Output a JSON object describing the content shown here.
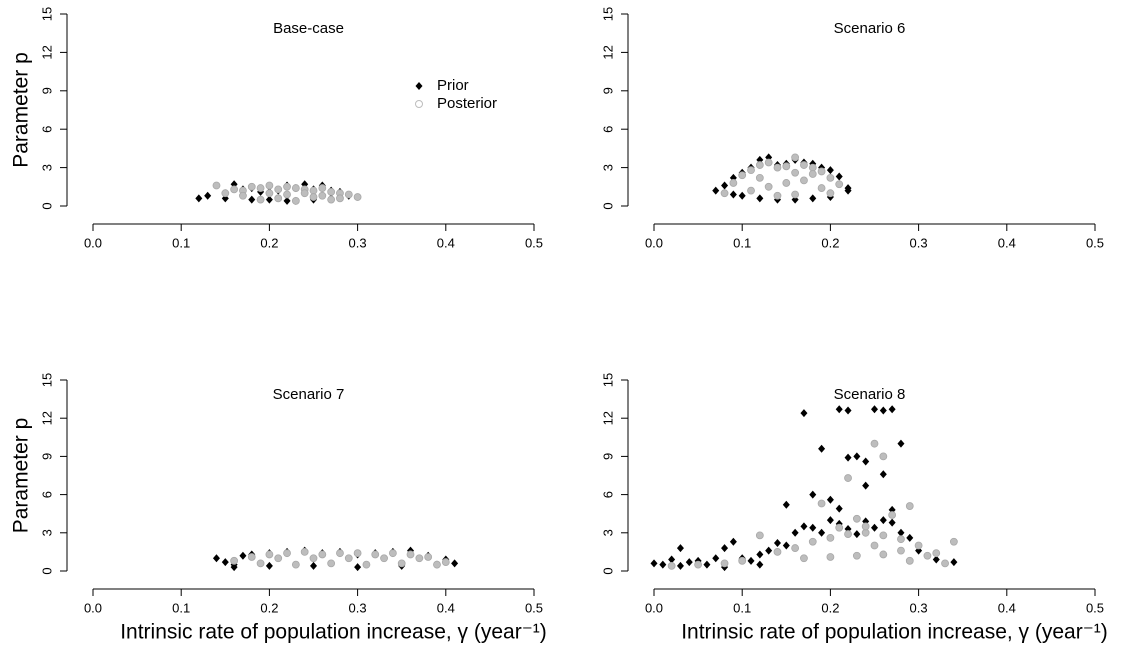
{
  "chart_data": [
    {
      "type": "scatter",
      "title": "Base-case",
      "y_label": "Parameter p",
      "legend": "top-right",
      "xlim": [
        0,
        0.5
      ],
      "ylim": [
        0,
        15
      ],
      "xticks": [
        {
          "value": 0,
          "label": "0.0"
        },
        0.1,
        0.2,
        0.3,
        0.4,
        0.5
      ],
      "yticks": [
        0,
        3,
        6,
        9,
        12,
        15
      ],
      "series": [
        {
          "name": "Prior",
          "color": "#000000",
          "x": [
            0.12,
            0.13,
            0.15,
            0.16,
            0.17,
            0.18,
            0.19,
            0.2,
            0.21,
            0.22,
            0.23,
            0.24,
            0.25,
            0.26,
            0.27,
            0.28,
            0.29,
            0.2,
            0.23,
            0.25,
            0.15,
            0.27,
            0.18,
            0.22
          ],
          "values": [
            0.6,
            0.8,
            1.0,
            1.7,
            1.3,
            1.4,
            1.1,
            1.5,
            1.2,
            1.6,
            1.4,
            1.7,
            1.3,
            1.6,
            1.2,
            1.1,
            0.8,
            0.5,
            0.4,
            0.5,
            0.6,
            0.6,
            0.5,
            0.4
          ]
        },
        {
          "name": "Posterior",
          "color": "#bdbdbd",
          "x": [
            0.14,
            0.15,
            0.16,
            0.17,
            0.18,
            0.19,
            0.2,
            0.21,
            0.22,
            0.23,
            0.24,
            0.25,
            0.26,
            0.27,
            0.28,
            0.29,
            0.3,
            0.19,
            0.21,
            0.23,
            0.25,
            0.27,
            0.17,
            0.2,
            0.22,
            0.24,
            0.26,
            0.28
          ],
          "values": [
            1.6,
            1.0,
            1.3,
            1.2,
            1.5,
            1.4,
            1.6,
            1.3,
            1.5,
            1.4,
            1.3,
            1.2,
            1.4,
            1.1,
            1.0,
            0.9,
            0.7,
            0.5,
            0.6,
            0.4,
            0.7,
            0.5,
            0.8,
            1.0,
            0.9,
            1.0,
            0.8,
            0.6
          ]
        }
      ]
    },
    {
      "type": "scatter",
      "title": "Scenario 6",
      "xlim": [
        0,
        0.5
      ],
      "ylim": [
        0,
        15
      ],
      "xticks": [
        {
          "value": 0,
          "label": "0.0"
        },
        0.1,
        0.2,
        0.3,
        0.4,
        0.5
      ],
      "yticks": [
        0,
        3,
        6,
        9,
        12,
        15
      ],
      "series": [
        {
          "name": "Prior",
          "color": "#000000",
          "x": [
            0.07,
            0.08,
            0.09,
            0.1,
            0.11,
            0.12,
            0.13,
            0.14,
            0.15,
            0.16,
            0.17,
            0.18,
            0.19,
            0.2,
            0.21,
            0.22,
            0.1,
            0.12,
            0.14,
            0.16,
            0.18,
            0.2,
            0.22,
            0.09
          ],
          "values": [
            1.2,
            1.6,
            2.2,
            2.6,
            3.0,
            3.6,
            3.8,
            3.2,
            3.3,
            3.6,
            3.4,
            3.3,
            3.0,
            2.8,
            2.3,
            1.4,
            0.8,
            0.6,
            0.5,
            0.5,
            0.6,
            0.7,
            1.2,
            0.9
          ]
        },
        {
          "name": "Posterior",
          "color": "#bdbdbd",
          "x": [
            0.08,
            0.09,
            0.1,
            0.11,
            0.12,
            0.13,
            0.14,
            0.15,
            0.16,
            0.17,
            0.18,
            0.19,
            0.2,
            0.21,
            0.11,
            0.13,
            0.15,
            0.17,
            0.19,
            0.14,
            0.16,
            0.12,
            0.18,
            0.16,
            0.2
          ],
          "values": [
            1.0,
            1.8,
            2.4,
            2.8,
            3.2,
            3.4,
            3.0,
            3.1,
            3.8,
            3.2,
            3.0,
            2.7,
            2.2,
            1.7,
            1.2,
            1.5,
            1.8,
            2.0,
            1.4,
            0.8,
            0.9,
            2.2,
            2.5,
            2.6,
            1.0
          ]
        }
      ]
    },
    {
      "type": "scatter",
      "title": "Scenario 7",
      "y_label": "Parameter p",
      "x_label": "Intrinsic rate of population increase, γ (year⁻¹)",
      "xlim": [
        0,
        0.5
      ],
      "ylim": [
        0,
        15
      ],
      "xticks": [
        {
          "value": 0,
          "label": "0.0"
        },
        0.1,
        0.2,
        0.3,
        0.4,
        0.5
      ],
      "yticks": [
        0,
        3,
        6,
        9,
        12,
        15
      ],
      "series": [
        {
          "name": "Prior",
          "color": "#000000",
          "x": [
            0.14,
            0.15,
            0.16,
            0.17,
            0.18,
            0.2,
            0.22,
            0.24,
            0.26,
            0.28,
            0.3,
            0.32,
            0.34,
            0.36,
            0.38,
            0.4,
            0.41,
            0.2,
            0.25,
            0.3,
            0.35,
            0.39,
            0.16
          ],
          "values": [
            1.0,
            0.7,
            0.5,
            1.2,
            1.3,
            1.4,
            1.5,
            1.6,
            1.4,
            1.5,
            1.3,
            1.4,
            1.5,
            1.6,
            1.2,
            0.9,
            0.6,
            0.4,
            0.4,
            0.3,
            0.4,
            0.5,
            0.3
          ]
        },
        {
          "name": "Posterior",
          "color": "#bdbdbd",
          "x": [
            0.16,
            0.18,
            0.2,
            0.22,
            0.24,
            0.26,
            0.28,
            0.3,
            0.32,
            0.34,
            0.36,
            0.38,
            0.4,
            0.19,
            0.23,
            0.27,
            0.31,
            0.35,
            0.39,
            0.21,
            0.25,
            0.29,
            0.33,
            0.37
          ],
          "values": [
            0.8,
            1.1,
            1.3,
            1.4,
            1.5,
            1.3,
            1.4,
            1.4,
            1.3,
            1.4,
            1.3,
            1.1,
            0.7,
            0.6,
            0.5,
            0.6,
            0.5,
            0.6,
            0.5,
            1.0,
            1.0,
            1.0,
            1.0,
            1.0
          ]
        }
      ]
    },
    {
      "type": "scatter",
      "title": "Scenario 8",
      "x_label": "Intrinsic rate of population increase, γ (year⁻¹)",
      "xlim": [
        0,
        0.5
      ],
      "ylim": [
        0,
        15
      ],
      "xticks": [
        {
          "value": 0,
          "label": "0.0"
        },
        0.1,
        0.2,
        0.3,
        0.4,
        0.5
      ],
      "yticks": [
        0,
        3,
        6,
        9,
        12,
        15
      ],
      "series": [
        {
          "name": "Prior",
          "color": "#000000",
          "x": [
            0.0,
            0.01,
            0.02,
            0.03,
            0.04,
            0.05,
            0.06,
            0.07,
            0.08,
            0.09,
            0.1,
            0.11,
            0.12,
            0.13,
            0.14,
            0.15,
            0.16,
            0.17,
            0.18,
            0.19,
            0.2,
            0.21,
            0.22,
            0.23,
            0.24,
            0.25,
            0.26,
            0.27,
            0.28,
            0.29,
            0.3,
            0.17,
            0.21,
            0.22,
            0.25,
            0.26,
            0.27,
            0.19,
            0.22,
            0.23,
            0.28,
            0.2,
            0.24,
            0.26,
            0.15,
            0.18,
            0.21,
            0.24,
            0.27,
            0.03,
            0.08,
            0.12,
            0.32,
            0.34
          ],
          "values": [
            0.6,
            0.5,
            0.9,
            1.8,
            0.7,
            0.8,
            0.5,
            1.0,
            1.8,
            2.3,
            1.0,
            0.8,
            1.3,
            1.6,
            2.2,
            2.0,
            3.0,
            3.5,
            3.4,
            3.0,
            4.0,
            3.7,
            3.3,
            2.9,
            3.9,
            3.4,
            4.0,
            3.8,
            3.0,
            2.6,
            1.6,
            12.4,
            12.7,
            12.6,
            12.7,
            12.6,
            12.7,
            9.6,
            8.9,
            9.0,
            10.0,
            5.6,
            8.6,
            7.6,
            5.2,
            6.0,
            4.9,
            6.7,
            4.8,
            0.4,
            0.3,
            0.5,
            0.9,
            0.7
          ]
        },
        {
          "name": "Posterior",
          "color": "#bdbdbd",
          "x": [
            0.02,
            0.05,
            0.08,
            0.1,
            0.12,
            0.14,
            0.16,
            0.18,
            0.2,
            0.22,
            0.24,
            0.26,
            0.28,
            0.3,
            0.32,
            0.34,
            0.25,
            0.26,
            0.22,
            0.19,
            0.29,
            0.23,
            0.27,
            0.24,
            0.21,
            0.25,
            0.28,
            0.31,
            0.17,
            0.2,
            0.23,
            0.26,
            0.29,
            0.33
          ],
          "values": [
            0.4,
            0.5,
            0.6,
            0.8,
            2.8,
            1.5,
            1.8,
            2.3,
            2.6,
            2.9,
            3.0,
            2.8,
            2.5,
            2.0,
            1.4,
            2.3,
            10.0,
            9.0,
            7.3,
            5.3,
            5.1,
            4.1,
            4.4,
            3.5,
            3.4,
            2.0,
            1.6,
            1.2,
            1.0,
            1.1,
            1.2,
            1.3,
            0.8,
            0.6
          ]
        }
      ]
    }
  ]
}
